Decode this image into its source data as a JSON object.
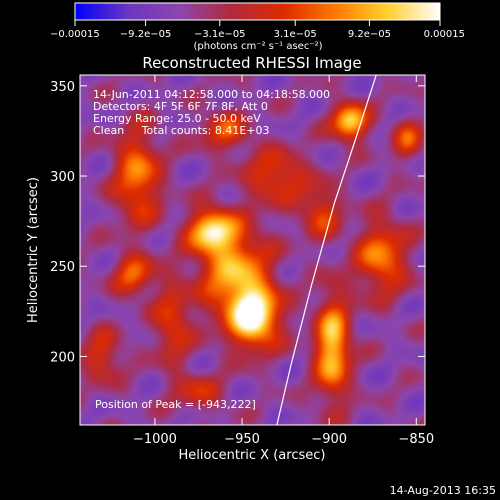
{
  "chart_data": {
    "type": "heatmap",
    "title": "Reconstructed RHESSI Image",
    "xlabel": "Heliocentric X (arcsec)",
    "ylabel": "Heliocentric Y (arcsec)",
    "xlim": [
      -1043,
      -845
    ],
    "ylim": [
      162,
      356
    ],
    "xticks": [
      -1000,
      -950,
      -900,
      -850
    ],
    "xtick_labels": [
      "−1000",
      "−950",
      "−900",
      "−850"
    ],
    "yticks": [
      200,
      250,
      300,
      350
    ],
    "ytick_labels": [
      "200",
      "250",
      "300",
      "350"
    ],
    "colorbar": {
      "min": -0.00015,
      "max": 0.00015,
      "ticks": [
        -0.00015,
        -9.2e-05,
        -3.1e-05,
        3.1e-05,
        9.2e-05,
        0.00015
      ],
      "tick_labels": [
        "−0.00015",
        "−9.2e−05",
        "−3.1e−05",
        "3.1e−05",
        "9.2e−05",
        "0.00015"
      ],
      "unit_label": "(photons cm⁻² s⁻¹ asec⁻²)",
      "colors": [
        "#0000ff",
        "#6a35c0",
        "#8c46ad",
        "#b02a3c",
        "#dd2a00",
        "#ff7a00",
        "#ffd030",
        "#ffffff"
      ]
    },
    "info_lines": [
      "14-Jun-2011 04:12:58.000 to 04:18:58.000",
      "Detectors: 4F 5F 6F 7F 8F, Att 0",
      "Energy Range: 25.0 - 50.0 keV",
      "Clean     Total counts: 8.41E+03"
    ],
    "peak_label": "Position of Peak = [-943,222]",
    "peak": {
      "x": -943,
      "y": 222
    },
    "limb_curve": [
      {
        "x": -930,
        "y": 162
      },
      {
        "x": -922,
        "y": 195
      },
      {
        "x": -910,
        "y": 240
      },
      {
        "x": -897,
        "y": 285
      },
      {
        "x": -885,
        "y": 320
      },
      {
        "x": -873,
        "y": 356
      }
    ],
    "sources": [
      {
        "x": -943,
        "y": 222,
        "sx": 10,
        "sy": 12,
        "a": 1.15
      },
      {
        "x": -955,
        "y": 248,
        "sx": 14,
        "sy": 18,
        "a": 0.8
      },
      {
        "x": -968,
        "y": 270,
        "sx": 9,
        "sy": 8,
        "a": 0.9
      },
      {
        "x": -888,
        "y": 330,
        "sx": 7,
        "sy": 7,
        "a": 1.0
      },
      {
        "x": -898,
        "y": 205,
        "sx": 7,
        "sy": 20,
        "a": 0.95
      },
      {
        "x": -870,
        "y": 255,
        "sx": 10,
        "sy": 14,
        "a": 0.7
      },
      {
        "x": -1010,
        "y": 300,
        "sx": 9,
        "sy": 18,
        "a": 0.7
      },
      {
        "x": -1012,
        "y": 245,
        "sx": 8,
        "sy": 8,
        "a": 0.6
      },
      {
        "x": -990,
        "y": 218,
        "sx": 7,
        "sy": 16,
        "a": 0.5
      },
      {
        "x": -930,
        "y": 300,
        "sx": 12,
        "sy": 10,
        "a": 0.55
      },
      {
        "x": -960,
        "y": 325,
        "sx": 10,
        "sy": 8,
        "a": 0.5
      },
      {
        "x": -905,
        "y": 280,
        "sx": 8,
        "sy": 10,
        "a": 0.5
      },
      {
        "x": -1030,
        "y": 200,
        "sx": 8,
        "sy": 10,
        "a": 0.45
      },
      {
        "x": -855,
        "y": 320,
        "sx": 6,
        "sy": 8,
        "a": 0.5
      },
      {
        "x": -975,
        "y": 180,
        "sx": 10,
        "sy": 7,
        "a": 0.4
      }
    ]
  },
  "footer": {
    "date": "14-Aug-2013 16:35"
  }
}
